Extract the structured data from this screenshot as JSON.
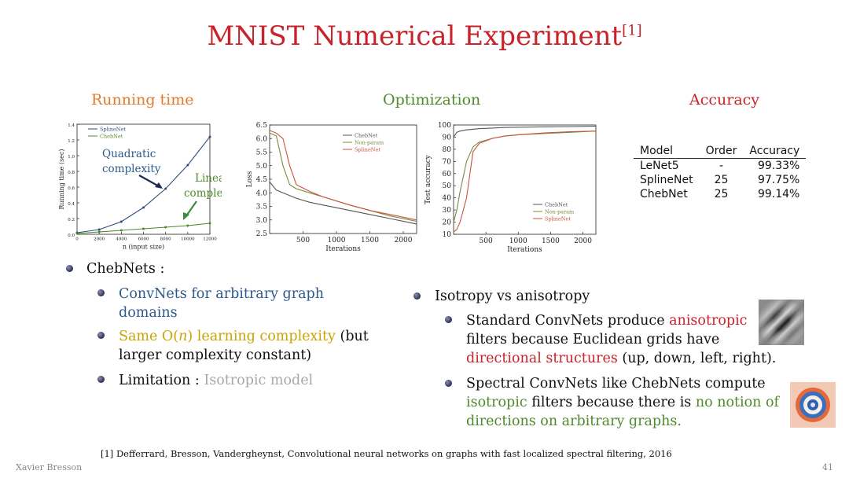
{
  "slide": {
    "title": "MNIST Numerical Experiment",
    "title_ref": "[1]",
    "author": "Xavier Bresson",
    "page_number": "41"
  },
  "sections": {
    "running_time": "Running time",
    "optimization": "Optimization",
    "accuracy": "Accuracy"
  },
  "colors": {
    "title_red": "#c8222a",
    "running_time_orange": "#e07a2e",
    "optimization_green": "#4f8a2b",
    "accuracy_red": "#c8222a"
  },
  "chart_data": [
    {
      "type": "line",
      "title": "Running time",
      "xlabel": "n (input size)",
      "ylabel": "Running time (sec)",
      "x": [
        0,
        2000,
        4000,
        6000,
        8000,
        10000,
        12000
      ],
      "xticks": [
        "0",
        "2000",
        "4000",
        "6000",
        "8000",
        "10000",
        "12000"
      ],
      "yticks": [
        "0.0",
        "0.2",
        "0.4",
        "0.6",
        "0.8",
        "1.0",
        "1.2",
        "1.4"
      ],
      "xlim": [
        0,
        12000
      ],
      "ylim": [
        0,
        1.4
      ],
      "series": [
        {
          "name": "SplineNet",
          "values": [
            0.02,
            0.06,
            0.16,
            0.34,
            0.58,
            0.88,
            1.24
          ]
        },
        {
          "name": "ChebNet",
          "values": [
            0.01,
            0.03,
            0.05,
            0.07,
            0.09,
            0.11,
            0.14
          ]
        }
      ],
      "annotations": {
        "quadratic_line1": "Quadratic",
        "quadratic_line2": "complexity",
        "linear_line1": "Linear",
        "linear_line2": "complexity"
      }
    },
    {
      "type": "line",
      "title": "Loss",
      "xlabel": "Iterations",
      "ylabel": "Loss",
      "xticks": [
        "500",
        "1000",
        "1500",
        "2000"
      ],
      "yticks": [
        "2.5",
        "3.0",
        "3.5",
        "4.0",
        "4.5",
        "5.0",
        "5.5",
        "6.0",
        "6.5"
      ],
      "xlim": [
        0,
        2200
      ],
      "ylim": [
        2.5,
        6.5
      ],
      "x": [
        0,
        100,
        200,
        300,
        400,
        600,
        800,
        1000,
        1200,
        1500,
        1800,
        2200
      ],
      "series": [
        {
          "name": "ChebNet",
          "values": [
            4.4,
            4.1,
            4.0,
            3.9,
            3.8,
            3.65,
            3.55,
            3.45,
            3.35,
            3.2,
            3.05,
            2.85
          ]
        },
        {
          "name": "Non-param",
          "values": [
            6.2,
            6.1,
            5.0,
            4.3,
            4.15,
            4.0,
            3.85,
            3.7,
            3.55,
            3.35,
            3.15,
            2.95
          ]
        },
        {
          "name": "SplineNet",
          "values": [
            6.3,
            6.2,
            6.0,
            5.0,
            4.3,
            4.05,
            3.85,
            3.7,
            3.55,
            3.35,
            3.2,
            3.0
          ]
        }
      ]
    },
    {
      "type": "line",
      "title": "Test accuracy",
      "xlabel": "Iterations",
      "ylabel": "Test accuracy",
      "xticks": [
        "500",
        "1000",
        "1500",
        "2000"
      ],
      "yticks": [
        "10",
        "20",
        "30",
        "40",
        "50",
        "60",
        "70",
        "80",
        "90",
        "100"
      ],
      "xlim": [
        0,
        2200
      ],
      "ylim": [
        10,
        100
      ],
      "x": [
        0,
        50,
        100,
        200,
        300,
        400,
        600,
        800,
        1000,
        1400,
        1800,
        2200
      ],
      "series": [
        {
          "name": "ChebNet",
          "values": [
            90,
            94,
            95,
            96,
            96.5,
            97,
            97.5,
            98,
            98.2,
            98.5,
            98.7,
            99
          ]
        },
        {
          "name": "Non-param",
          "values": [
            20,
            30,
            45,
            70,
            82,
            86,
            89,
            91,
            92,
            93,
            94,
            95
          ]
        },
        {
          "name": "SplineNet",
          "values": [
            12,
            14,
            20,
            40,
            78,
            85,
            89,
            91,
            92,
            93.5,
            94.5,
            95
          ]
        }
      ]
    }
  ],
  "accuracy_table": {
    "headers": [
      "Model",
      "Order",
      "Accuracy"
    ],
    "rows": [
      [
        "LeNet5",
        "-",
        "99.33%"
      ],
      [
        "SplineNet",
        "25",
        "97.75%"
      ],
      [
        "ChebNet",
        "25",
        "99.14%"
      ]
    ]
  },
  "left_bullets": {
    "main": "ChebNets :",
    "sub1_a": "ConvNets for arbitrary graph",
    "sub1_b": "domains",
    "sub2_a": "Same O(",
    "sub2_n": "n",
    "sub2_b": ") learning complexity",
    "sub2_c": " (but",
    "sub2_d": "larger complexity constant)",
    "sub3_a": "Limitation : ",
    "sub3_b": "Isotropic model"
  },
  "right_bullets": {
    "main": "Isotropy vs anisotropy",
    "s1_a": "Standard ConvNets produce ",
    "s1_b": "anisotropic",
    "s1_c": "filters because Euclidean grids have",
    "s1_d": "directional structures",
    "s1_e": " (up, down, left, right).",
    "s2_a": "Spectral ConvNets like ChebNets compute",
    "s2_b": "isotropic",
    "s2_c": " filters because there is ",
    "s2_d": "no notion of",
    "s2_e": "directions on arbitrary graphs."
  },
  "footer": {
    "reference": "[1] Defferrard, Bresson, Vandergheynst, Convolutional neural networks on graphs with fast localized spectral filtering, 2016"
  }
}
